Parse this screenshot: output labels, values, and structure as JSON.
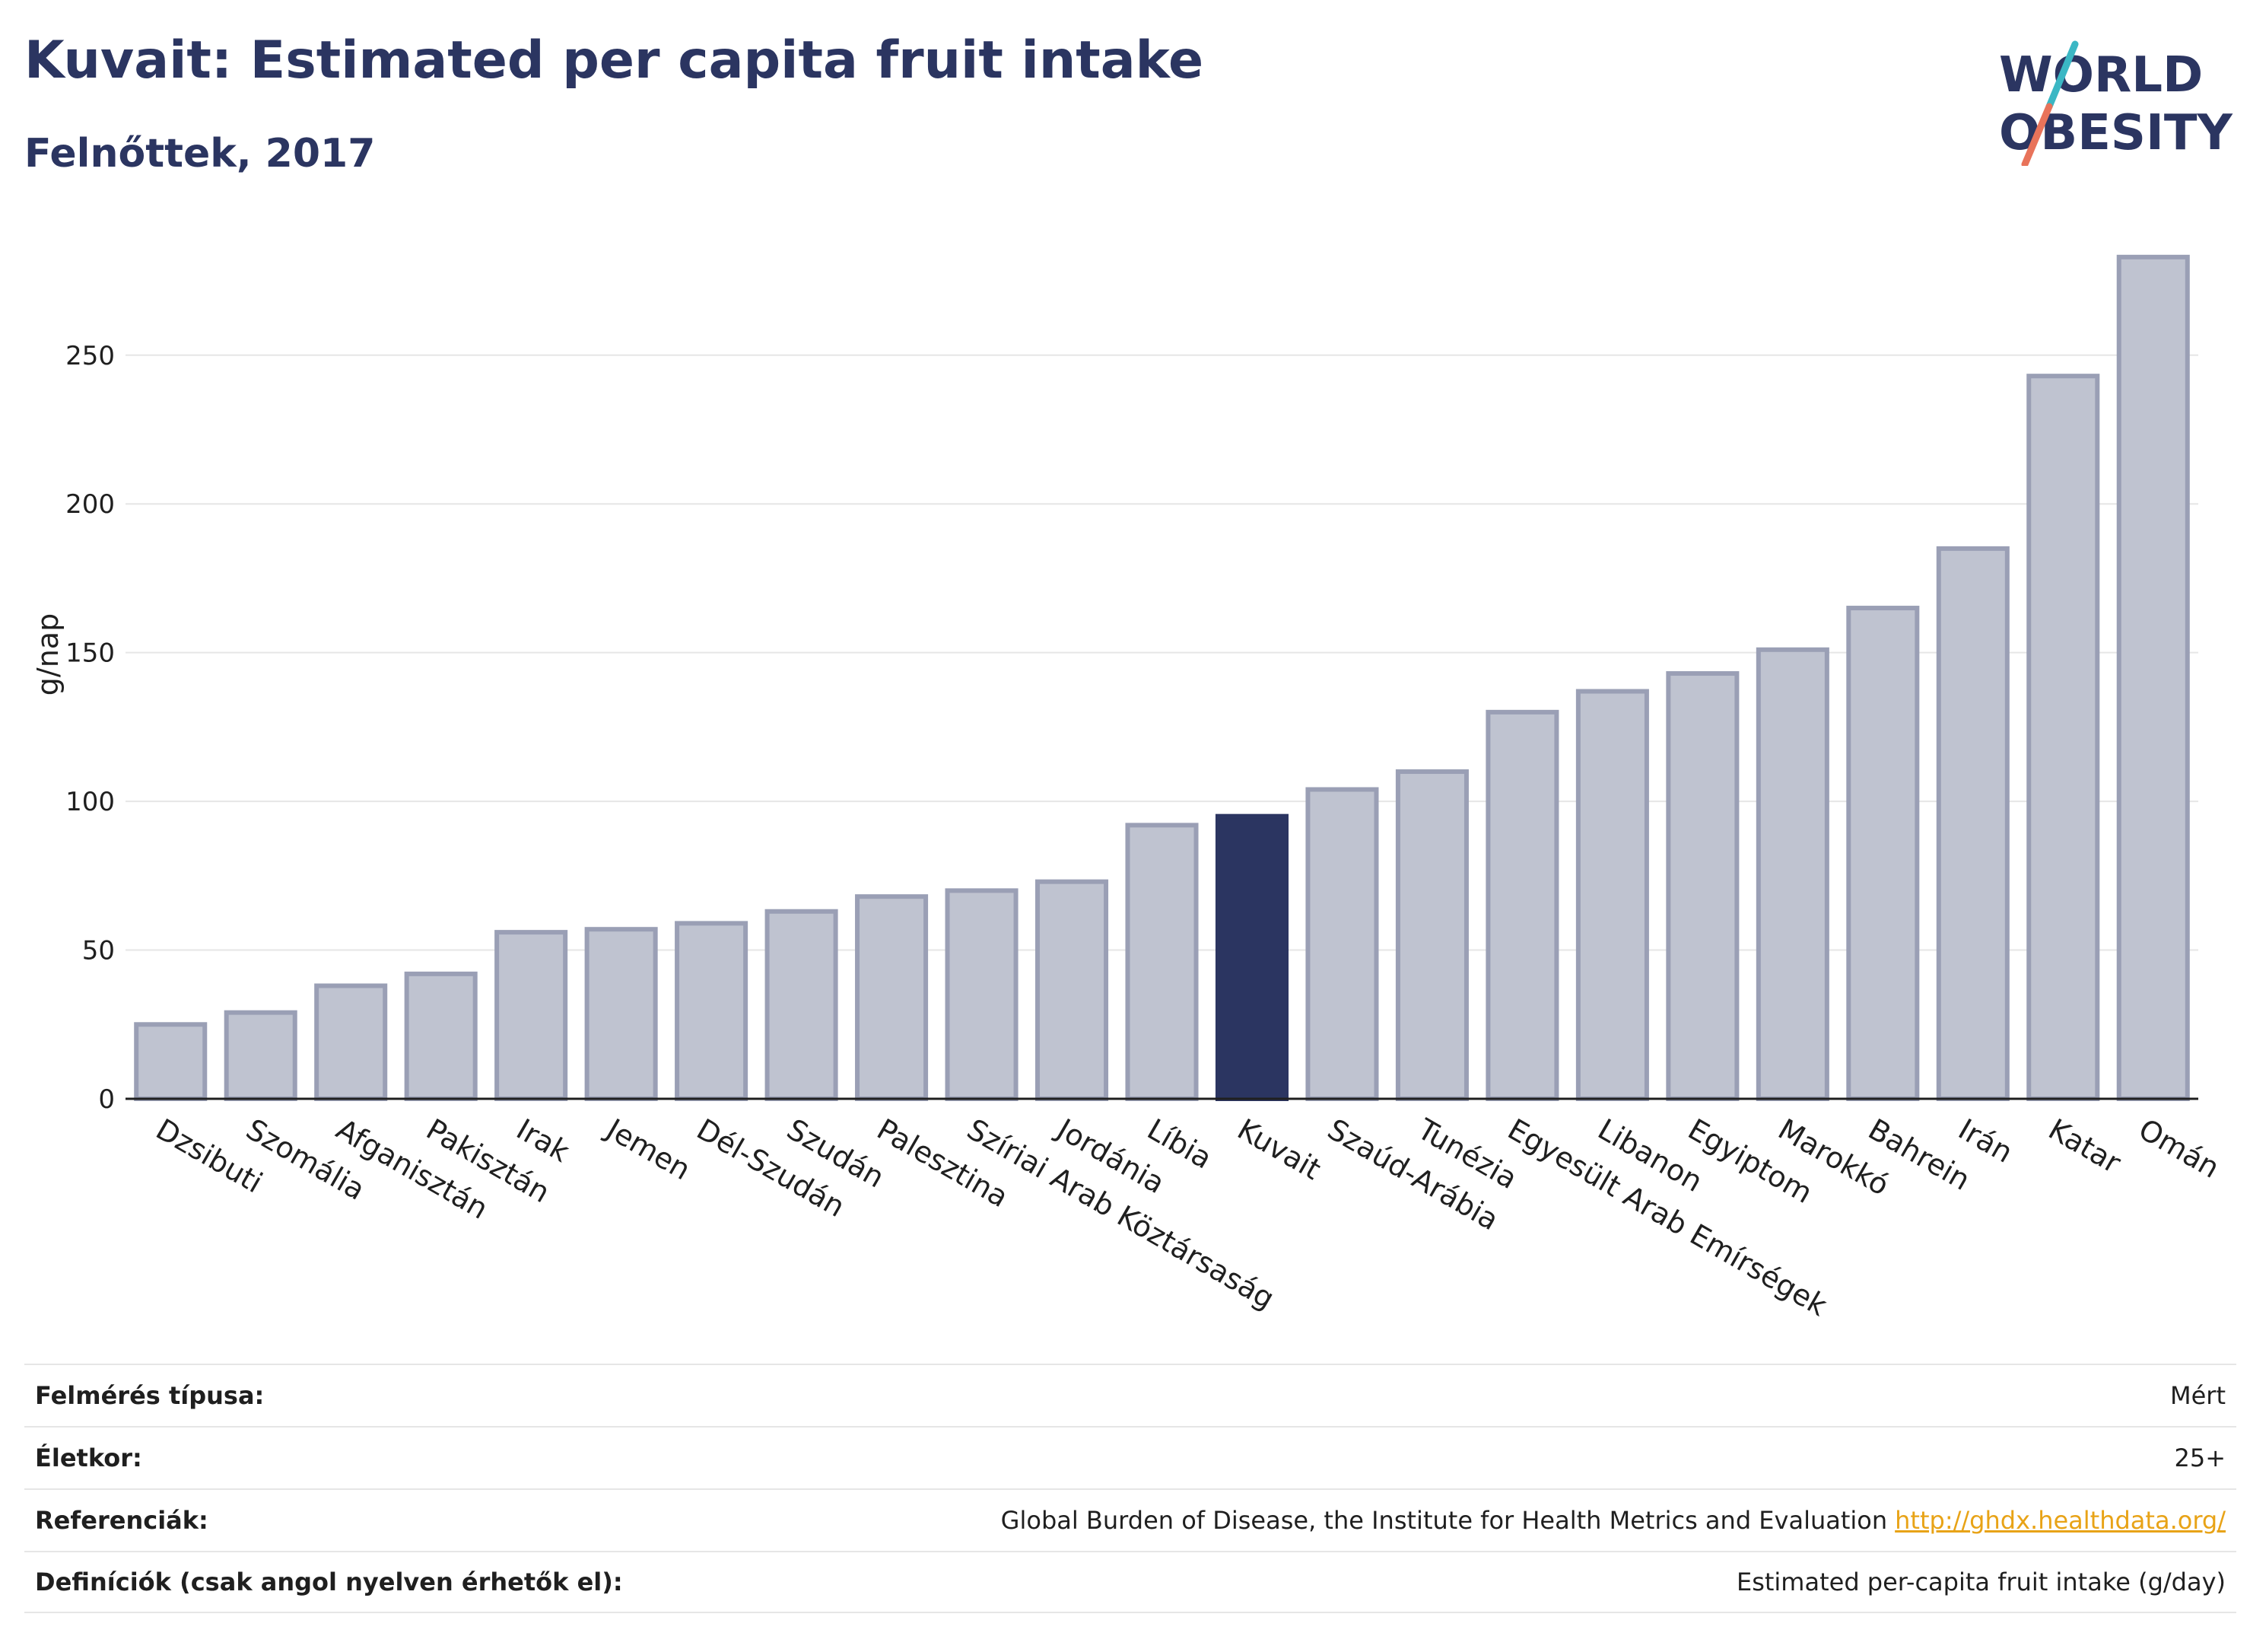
{
  "header": {
    "title": "Kuvait: Estimated per capita fruit intake",
    "subtitle": "Felnőttek, 2017"
  },
  "logo": {
    "line1": "WORLD",
    "line2": "OBESITY",
    "accent_teal": "#3bb7c4",
    "accent_coral": "#e8735a",
    "text_color": "#2b3561"
  },
  "colors": {
    "bar_default_fill": "#bfc3d0",
    "bar_default_stroke": "#9a9fb5",
    "bar_highlight": "#2b3561",
    "grid": "#e6e6e6"
  },
  "chart_data": {
    "type": "bar",
    "ylabel": "g/nap",
    "ylim": [
      0,
      285
    ],
    "yticks": [
      0,
      50,
      100,
      150,
      200,
      250
    ],
    "grid": true,
    "highlight": "Kuvait",
    "categories": [
      "Dzsibuti",
      "Szomália",
      "Afganisztán",
      "Pakisztán",
      "Irak",
      "Jemen",
      "Dél-Szudán",
      "Szudán",
      "Palesztina",
      "Szíriai Arab Köztársaság",
      "Jordánia",
      "Líbia",
      "Kuvait",
      "Szaúd-Arábia",
      "Tunézia",
      "Egyesült Arab Emírségek",
      "Libanon",
      "Egyiptom",
      "Marokkó",
      "Bahrein",
      "Irán",
      "Katar",
      "Omán"
    ],
    "values": [
      25,
      29,
      38,
      42,
      56,
      57,
      59,
      63,
      68,
      70,
      73,
      92,
      95,
      104,
      110,
      130,
      137,
      143,
      151,
      165,
      185,
      243,
      283
    ]
  },
  "info": [
    {
      "key": "Felmérés típusa:",
      "value": "Mért"
    },
    {
      "key": "Életkor:",
      "value": "25+"
    },
    {
      "key": "Referenciák:",
      "value": "Global Burden of Disease, the Institute for Health Metrics and Evaluation",
      "link": "http://ghdx.healthdata.org/"
    },
    {
      "key": "Definíciók (csak angol nyelven érhetők el):",
      "value": "Estimated per-capita fruit intake (g/day)"
    }
  ]
}
